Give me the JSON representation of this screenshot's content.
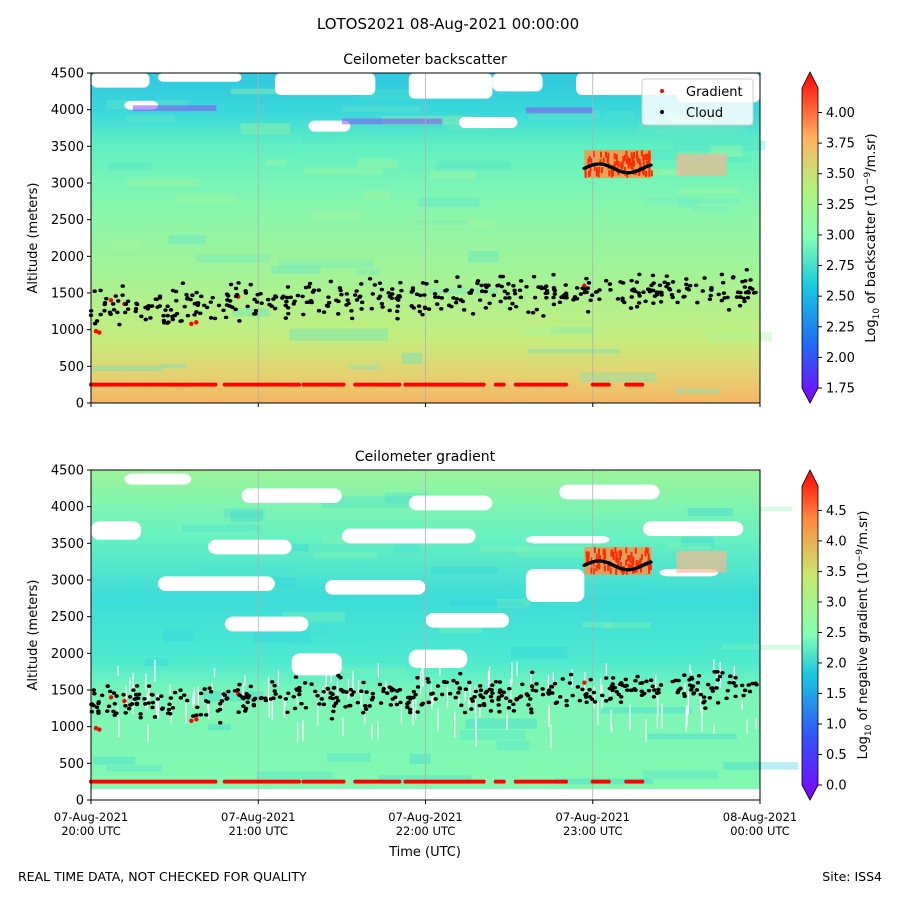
{
  "figure_title": "LOTOS2021 08-Aug-2021 00:00:00",
  "footer_left": "REAL TIME DATA, NOT CHECKED FOR QUALITY",
  "footer_right": "Site: ISS4",
  "x_axis": {
    "label": "Time (UTC)",
    "ticks": [
      {
        "t": 0,
        "line1": "07-Aug-2021",
        "line2": "20:00 UTC"
      },
      {
        "t": 1,
        "line1": "07-Aug-2021",
        "line2": "21:00 UTC"
      },
      {
        "t": 2,
        "line1": "07-Aug-2021",
        "line2": "22:00 UTC"
      },
      {
        "t": 3,
        "line1": "07-Aug-2021",
        "line2": "23:00 UTC"
      },
      {
        "t": 4,
        "line1": "08-Aug-2021",
        "line2": "00:00 UTC"
      }
    ]
  },
  "legend": {
    "gradient": "Gradient",
    "cloud": "Cloud"
  },
  "colors": {
    "gradient": "#ff0000",
    "cloud": "#000000",
    "grid": "#b0b0b0"
  },
  "chart_data": [
    {
      "type": "heatmap",
      "title": "Ceilometer backscatter",
      "ylabel": "Altitude (meters)",
      "ylim": [
        0,
        4500
      ],
      "xlim_hours_since_2000_utc": [
        0,
        4
      ],
      "yticks": [
        "0",
        "500",
        "1000",
        "1500",
        "2000",
        "2500",
        "3000",
        "3500",
        "4000",
        "4500"
      ],
      "colorbar": {
        "label": "Log10 of backscatter (10^-9/m.sr)",
        "range": [
          1.75,
          4.2
        ],
        "ticks": [
          "1.75",
          "2.00",
          "2.25",
          "2.50",
          "2.75",
          "3.00",
          "3.25",
          "3.50",
          "3.75",
          "4.00"
        ]
      },
      "show_legend": true
    },
    {
      "type": "heatmap",
      "title": "Ceilometer gradient",
      "ylabel": "Altitude (meters)",
      "ylim": [
        0,
        4500
      ],
      "xlim_hours_since_2000_utc": [
        0,
        4
      ],
      "yticks": [
        "0",
        "500",
        "1000",
        "1500",
        "2000",
        "2500",
        "3000",
        "3500",
        "4000",
        "4500"
      ],
      "colorbar": {
        "label": "Log10 of negative gradient (10^-9/m.sr)",
        "range": [
          0.0,
          4.9
        ],
        "ticks": [
          "0.0",
          "0.5",
          "1.0",
          "1.5",
          "2.0",
          "2.5",
          "3.0",
          "3.5",
          "4.0",
          "4.5"
        ]
      },
      "show_legend": false
    }
  ],
  "series_common": {
    "gradient_surface_layer_m": 250,
    "gradient_surface_segments_hours": [
      [
        0,
        0.75
      ],
      [
        0.8,
        1.25
      ],
      [
        1.27,
        1.52
      ],
      [
        1.58,
        1.85
      ],
      [
        1.88,
        2.0
      ],
      [
        2.0,
        2.35
      ],
      [
        2.42,
        2.47
      ],
      [
        2.54,
        2.85
      ],
      [
        3.0,
        3.1
      ],
      [
        3.2,
        3.3
      ]
    ],
    "gradient_low_points": [
      {
        "t": 0.03,
        "alt": 980
      },
      {
        "t": 0.05,
        "alt": 960
      },
      {
        "t": 0.12,
        "alt": 1400
      },
      {
        "t": 0.2,
        "alt": 1350
      },
      {
        "t": 0.6,
        "alt": 1080
      },
      {
        "t": 0.63,
        "alt": 1100
      },
      {
        "t": 0.88,
        "alt": 1450
      },
      {
        "t": 2.95,
        "alt": 1600
      }
    ],
    "gradient_upper_band": {
      "t_start": 2.95,
      "t_end": 3.35,
      "alt_min": 3150,
      "alt_max": 3350
    },
    "cloud_band_main": {
      "t_start": 0,
      "t_end": 4,
      "alt_min": 1050,
      "alt_max": 1850,
      "alt_center_start": 1300,
      "alt_center_end": 1560
    },
    "cloud_upper_layer": {
      "t_start": 2.95,
      "t_end": 3.35,
      "alt_center": 3200
    }
  }
}
